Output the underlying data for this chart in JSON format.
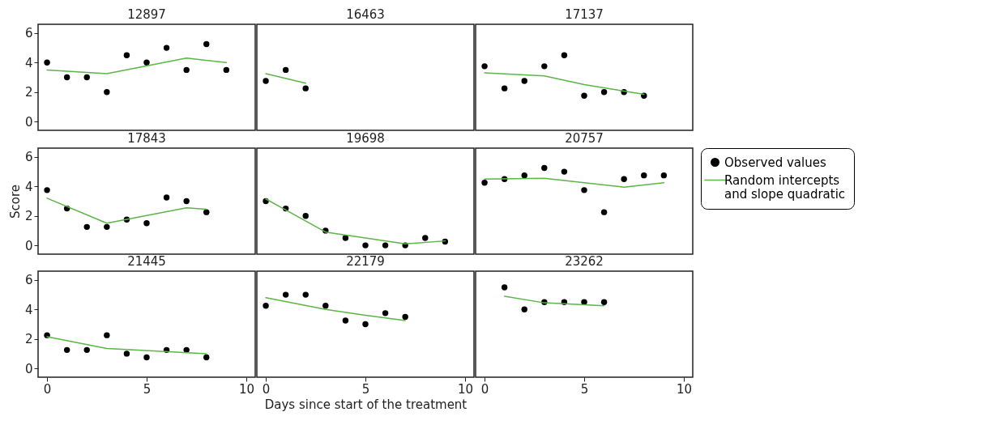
{
  "chart_data": [
    {
      "type": "scatter",
      "title": "12897",
      "xlim": [
        -0.45,
        10.45
      ],
      "ylim": [
        -0.6,
        6.6
      ],
      "xticks": [
        0,
        5,
        10
      ],
      "yticks": [
        0,
        2,
        4,
        6
      ],
      "tick_labels": "y",
      "series": [
        {
          "name": "Observed values",
          "color": "#000000",
          "marker": "circle",
          "x": [
            0,
            1,
            2,
            3,
            4,
            5,
            6,
            7,
            8,
            9
          ],
          "values": [
            4,
            3,
            3,
            2,
            4.5,
            4,
            5,
            3.5,
            5.25,
            3.5
          ]
        },
        {
          "name": "Random intercepts and slope quadratic",
          "color": "#5cb547",
          "type": "line",
          "x": [
            0,
            3,
            7,
            9
          ],
          "values": [
            3.5,
            3.25,
            4.3,
            4
          ]
        }
      ]
    },
    {
      "type": "scatter",
      "title": "16463",
      "xlim": [
        -0.45,
        10.45
      ],
      "ylim": [
        -0.6,
        6.6
      ],
      "xticks": [
        0,
        5,
        10
      ],
      "yticks": [
        0,
        2,
        4,
        6
      ],
      "tick_labels": false,
      "series": [
        {
          "name": "Observed values",
          "color": "#000000",
          "marker": "circle",
          "x": [
            0,
            1,
            2
          ],
          "values": [
            2.75,
            3.5,
            2.25
          ]
        },
        {
          "name": "Random intercepts and slope quadratic",
          "color": "#5cb547",
          "type": "line",
          "x": [
            0,
            2
          ],
          "values": [
            3.25,
            2.6
          ]
        }
      ]
    },
    {
      "type": "scatter",
      "title": "17137",
      "xlim": [
        -0.45,
        10.45
      ],
      "ylim": [
        -0.6,
        6.6
      ],
      "xticks": [
        0,
        5,
        10
      ],
      "yticks": [
        0,
        2,
        4,
        6
      ],
      "tick_labels": false,
      "series": [
        {
          "name": "Observed values",
          "color": "#000000",
          "marker": "circle",
          "x": [
            0,
            1,
            2,
            3,
            4,
            5,
            6,
            7,
            8
          ],
          "values": [
            3.75,
            2.25,
            2.75,
            3.75,
            4.5,
            1.75,
            2,
            2,
            1.75
          ]
        },
        {
          "name": "Random intercepts and slope quadratic",
          "color": "#5cb547",
          "type": "line",
          "x": [
            0,
            3,
            5,
            8
          ],
          "values": [
            3.3,
            3.1,
            2.5,
            1.85
          ]
        }
      ]
    },
    {
      "type": "scatter",
      "title": "17843",
      "ylabel": "Score",
      "xlim": [
        -0.45,
        10.45
      ],
      "ylim": [
        -0.6,
        6.6
      ],
      "xticks": [
        0,
        5,
        10
      ],
      "yticks": [
        0,
        2,
        4,
        6
      ],
      "tick_labels": "y",
      "series": [
        {
          "name": "Observed values",
          "color": "#000000",
          "marker": "circle",
          "x": [
            0,
            1,
            2,
            3,
            4,
            5,
            6,
            7,
            8
          ],
          "values": [
            3.75,
            2.5,
            1.25,
            1.25,
            1.75,
            1.5,
            3.25,
            3,
            2.25
          ]
        },
        {
          "name": "Random intercepts and slope quadratic",
          "color": "#5cb547",
          "type": "line",
          "x": [
            0,
            3,
            7,
            8
          ],
          "values": [
            3.2,
            1.5,
            2.55,
            2.45
          ]
        }
      ]
    },
    {
      "type": "scatter",
      "title": "19698",
      "xlim": [
        -0.45,
        10.45
      ],
      "ylim": [
        -0.6,
        6.6
      ],
      "xticks": [
        0,
        5,
        10
      ],
      "yticks": [
        0,
        2,
        4,
        6
      ],
      "tick_labels": false,
      "series": [
        {
          "name": "Observed values",
          "color": "#000000",
          "marker": "circle",
          "x": [
            0,
            1,
            2,
            3,
            4,
            5,
            6,
            7,
            8,
            9
          ],
          "values": [
            3,
            2.5,
            2,
            1,
            0.5,
            0,
            0,
            0,
            0.5,
            0.25
          ]
        },
        {
          "name": "Random intercepts and slope quadratic",
          "color": "#5cb547",
          "type": "line",
          "x": [
            0,
            3,
            7,
            9
          ],
          "values": [
            3.15,
            0.9,
            0.1,
            0.3
          ]
        }
      ]
    },
    {
      "type": "scatter",
      "title": "20757",
      "legend": "right",
      "xlim": [
        -0.45,
        10.45
      ],
      "ylim": [
        -0.6,
        6.6
      ],
      "xticks": [
        0,
        5,
        10
      ],
      "yticks": [
        0,
        2,
        4,
        6
      ],
      "tick_labels": false,
      "series": [
        {
          "name": "Observed values",
          "color": "#000000",
          "marker": "circle",
          "x": [
            0,
            1,
            2,
            3,
            4,
            5,
            6,
            7,
            8,
            9
          ],
          "values": [
            4.25,
            4.5,
            4.75,
            5.25,
            5,
            3.75,
            2.25,
            4.5,
            4.75,
            4.75
          ]
        },
        {
          "name": "Random intercepts and slope quadratic",
          "color": "#5cb547",
          "type": "line",
          "x": [
            0,
            3,
            7,
            9
          ],
          "values": [
            4.5,
            4.55,
            3.95,
            4.25
          ]
        }
      ]
    },
    {
      "type": "scatter",
      "title": "21445",
      "xlim": [
        -0.45,
        10.45
      ],
      "ylim": [
        -0.6,
        6.6
      ],
      "xticks": [
        0,
        5,
        10
      ],
      "yticks": [
        0,
        2,
        4,
        6
      ],
      "series": [
        {
          "name": "Observed values",
          "color": "#000000",
          "marker": "circle",
          "x": [
            0,
            1,
            2,
            3,
            4,
            5,
            6,
            7,
            8
          ],
          "values": [
            2.25,
            1.25,
            1.25,
            2.25,
            1,
            0.75,
            1.25,
            1.25,
            0.75
          ]
        },
        {
          "name": "Random intercepts and slope quadratic",
          "color": "#5cb547",
          "type": "line",
          "x": [
            0,
            3,
            8
          ],
          "values": [
            2.15,
            1.35,
            1
          ]
        }
      ]
    },
    {
      "type": "scatter",
      "title": "22179",
      "xlabel": "Days since start of the treatment",
      "xlim": [
        -0.45,
        10.45
      ],
      "ylim": [
        -0.6,
        6.6
      ],
      "xticks": [
        0,
        5,
        10
      ],
      "yticks": [
        0,
        2,
        4,
        6
      ],
      "tick_labels": "x",
      "series": [
        {
          "name": "Observed values",
          "color": "#000000",
          "marker": "circle",
          "x": [
            0,
            1,
            2,
            3,
            4,
            5,
            6,
            7
          ],
          "values": [
            4.25,
            5,
            5,
            4.25,
            3.25,
            3,
            3.75,
            3.5
          ]
        },
        {
          "name": "Random intercepts and slope quadratic",
          "color": "#5cb547",
          "type": "line",
          "x": [
            0,
            3,
            5,
            7
          ],
          "values": [
            4.8,
            4,
            3.6,
            3.25
          ]
        }
      ]
    },
    {
      "type": "scatter",
      "title": "23262",
      "xlim": [
        -0.45,
        10.45
      ],
      "ylim": [
        -0.6,
        6.6
      ],
      "xticks": [
        0,
        5,
        10
      ],
      "yticks": [
        0,
        2,
        4,
        6
      ],
      "tick_labels": "x",
      "series": [
        {
          "name": "Observed values",
          "color": "#000000",
          "marker": "circle",
          "x": [
            1,
            2,
            3,
            4,
            5,
            6
          ],
          "values": [
            5.5,
            4,
            4.5,
            4.5,
            4.5,
            4.5
          ]
        },
        {
          "name": "Random intercepts and slope quadratic",
          "color": "#5cb547",
          "type": "line",
          "x": [
            1,
            3,
            6
          ],
          "values": [
            4.9,
            4.45,
            4.25
          ]
        }
      ]
    }
  ]
}
